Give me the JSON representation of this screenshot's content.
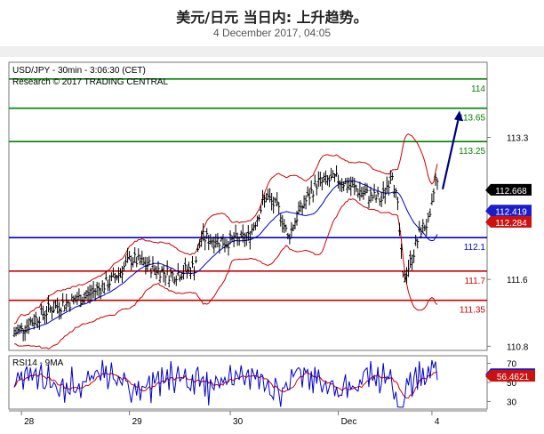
{
  "header": {
    "title": "美元/日元 当日内: 上升趋势。",
    "date": "4 December 2017, 04:05"
  },
  "chart_data": {
    "type": "candlestick",
    "info_line1": "USD/JPY - 30min - 3:06:30 (CET)",
    "info_line2": "Research © 2017 TRADING CENTRAL",
    "ylim": [
      110.75,
      114.2
    ],
    "yticks": [
      110.8,
      111.6,
      112.4,
      113.3
    ],
    "ytick_labels": [
      "110.8",
      "111.6",
      "112.4",
      "113.3"
    ],
    "levels": [
      {
        "value": 114.0,
        "label": "114",
        "color": "#008000"
      },
      {
        "value": 113.65,
        "label": "113.65",
        "color": "#008000"
      },
      {
        "value": 113.25,
        "label": "113.25",
        "color": "#008000"
      },
      {
        "value": 112.1,
        "label": "112.1",
        "color": "#0000cc"
      },
      {
        "value": 111.7,
        "label": "111.7",
        "color": "#cc0000"
      },
      {
        "value": 111.35,
        "label": "111.35",
        "color": "#cc0000"
      }
    ],
    "price_tags": [
      {
        "value": 112.668,
        "label": "112.668",
        "bg": "#000000",
        "fg": "#ffffff"
      },
      {
        "value": 112.419,
        "label": "112.419",
        "bg": "#1c1cc8",
        "fg": "#ffffff"
      },
      {
        "value": 112.284,
        "label": "112.284",
        "bg": "#cc1111",
        "fg": "#ffffff"
      }
    ],
    "forecast_arrow": {
      "from": [
        0,
        112.68
      ],
      "to": [
        3,
        113.6
      ]
    },
    "x_labels": [
      "28",
      "29",
      "30",
      "Dec",
      "4"
    ],
    "x_label_index": [
      4,
      64,
      120,
      180,
      232
    ],
    "bar_count": 236,
    "price_segments": [
      [
        0,
        110.95
      ],
      [
        20,
        111.25
      ],
      [
        40,
        111.4
      ],
      [
        55,
        111.6
      ],
      [
        65,
        111.85
      ],
      [
        76,
        111.75
      ],
      [
        88,
        111.65
      ],
      [
        100,
        111.75
      ],
      [
        104,
        112.1
      ],
      [
        118,
        112.05
      ],
      [
        130,
        112.1
      ],
      [
        140,
        112.6
      ],
      [
        148,
        112.4
      ],
      [
        152,
        112.1
      ],
      [
        158,
        112.4
      ],
      [
        168,
        112.75
      ],
      [
        180,
        112.8
      ],
      [
        195,
        112.62
      ],
      [
        204,
        112.55
      ],
      [
        210,
        112.9
      ],
      [
        213,
        112.45
      ],
      [
        216,
        111.6
      ],
      [
        220,
        111.8
      ],
      [
        226,
        112.2
      ],
      [
        231,
        112.3
      ],
      [
        234,
        112.8
      ],
      [
        236,
        112.67
      ]
    ],
    "rsi": {
      "label": "RSI14 - 9MA",
      "ylim": [
        22,
        78
      ],
      "ytick_labels": [
        "70",
        "50",
        "30"
      ],
      "yticks": [
        70,
        50,
        30
      ],
      "value_tags": [
        {
          "value": 58.1844,
          "label": "58.1844",
          "bg": "#1c1cc8",
          "fg": "#ffffff"
        },
        {
          "value": 56.4621,
          "label": "56.4621",
          "bg": "#cc1111",
          "fg": "#ffffff"
        }
      ]
    },
    "colors": {
      "bars": "#000000",
      "bollinger": "#cc0000",
      "ma": "#0000cc",
      "rsi": "#0000cc",
      "rsi_ma": "#cc0000"
    }
  }
}
